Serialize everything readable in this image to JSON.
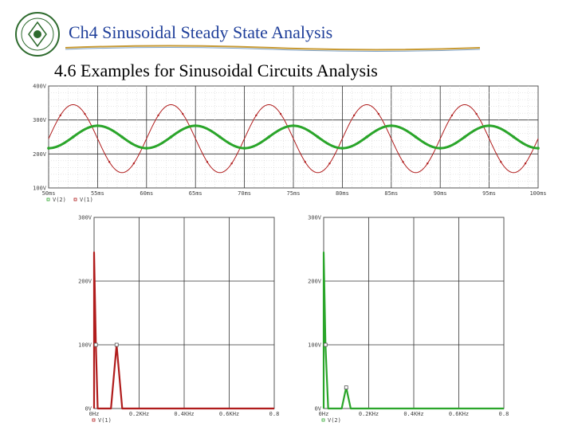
{
  "header": {
    "title": "Ch4  Sinusoidal Steady State Analysis",
    "subtitle": "4.6 Examples for Sinusoidal Circuits Analysis"
  },
  "colors": {
    "red": "#b01c1c",
    "green": "#2aa52a",
    "title_blue": "#1f3f9a"
  },
  "chart_data": [
    {
      "type": "line",
      "title": "",
      "x_tick_labels": [
        "50ms",
        "55ms",
        "60ms",
        "65ms",
        "70ms",
        "75ms",
        "80ms",
        "85ms",
        "90ms",
        "95ms",
        "100ms"
      ],
      "y_tick_labels": [
        "100V",
        "200V",
        "300V",
        "400V"
      ],
      "xlim": [
        50,
        100
      ],
      "ylim": [
        100,
        400
      ],
      "x_unit": "ms",
      "grid": true,
      "legend_position": "bottom-left",
      "legend": [
        "V(2)",
        "V(1)"
      ],
      "series": [
        {
          "name": "V(2)",
          "color": "#2aa52a",
          "offset": 250,
          "amplitude": 33,
          "frequency_hz": 100,
          "phase_deg": -90
        },
        {
          "name": "V(1)",
          "color": "#b01c1c",
          "offset": 245,
          "amplitude": 100,
          "frequency_hz": 100,
          "phase_deg": 0
        }
      ]
    },
    {
      "type": "line",
      "title": "",
      "x_tick_labels": [
        "0Hz",
        "0.2KHz",
        "0.4KHz",
        "0.6KHz",
        "0.8"
      ],
      "y_tick_labels": [
        "0V",
        "100V",
        "200V",
        "300V"
      ],
      "xlim": [
        0,
        0.8
      ],
      "ylim": [
        0,
        300
      ],
      "grid": true,
      "legend_position": "bottom-left",
      "legend": [
        "V(1)"
      ],
      "series": [
        {
          "name": "V(1)",
          "color": "#b01c1c",
          "x": [
            0,
            0,
            0.008,
            0.016,
            0.02,
            0.05,
            0.075,
            0.1,
            0.125,
            0.15,
            0.2,
            0.8
          ],
          "y": [
            0,
            245,
            100,
            0,
            0,
            0,
            0,
            100,
            0,
            0,
            0,
            0
          ]
        }
      ]
    },
    {
      "type": "line",
      "title": "",
      "x_tick_labels": [
        "0Hz",
        "0.2KHz",
        "0.4KHz",
        "0.6KHz",
        "0.8"
      ],
      "y_tick_labels": [
        "0V",
        "100V",
        "200V",
        "300V"
      ],
      "xlim": [
        0,
        0.8
      ],
      "ylim": [
        0,
        300
      ],
      "grid": true,
      "legend_position": "bottom-left",
      "legend": [
        "V(2)"
      ],
      "series": [
        {
          "name": "V(2)",
          "color": "#2aa52a",
          "x": [
            0,
            0,
            0.008,
            0.02,
            0.06,
            0.08,
            0.1,
            0.12,
            0.14,
            0.8
          ],
          "y": [
            0,
            245,
            100,
            0,
            0,
            0,
            33,
            0,
            0,
            0
          ]
        }
      ]
    }
  ]
}
